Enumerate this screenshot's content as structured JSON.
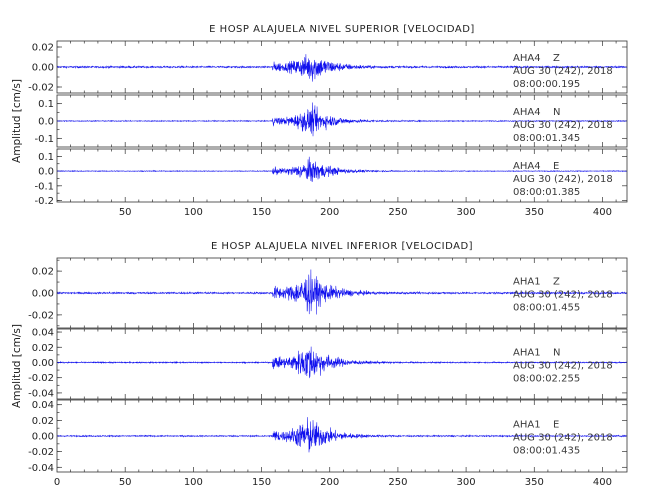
{
  "colors": {
    "trace": "#1010ee",
    "axis": "#333333",
    "text": "#222222"
  },
  "chart_data": [
    {
      "type": "line",
      "title": "E HOSP ALAJUELA NIVEL SUPERIOR [VELOCIDAD]",
      "ylabel": "Amplitud [cm/s]",
      "xlabel": "",
      "xlim": [
        0,
        418
      ],
      "xticks": [
        50,
        100,
        150,
        200,
        250,
        300,
        350,
        400
      ],
      "grid": false,
      "panels": [
        {
          "station": "AHA4",
          "component": "Z",
          "date": "AUG 30 (242), 2018",
          "time": "08:00:00.195",
          "ylim": [
            -0.026,
            0.026
          ],
          "yticks": [
            {
              "v": 0.02,
              "t": "0.02"
            },
            {
              "v": 0.0,
              "t": "0.00"
            },
            {
              "v": -0.02,
              "t": "-0.02"
            }
          ],
          "noise": 0.0013,
          "peak": 0.024,
          "event_onset": 158,
          "event_peak": 187
        },
        {
          "station": "AHA4",
          "component": "N",
          "date": "AUG 30 (242), 2018",
          "time": "08:00:01.345",
          "ylim": [
            -0.15,
            0.15
          ],
          "yticks": [
            {
              "v": 0.1,
              "t": "0.1"
            },
            {
              "v": 0.0,
              "t": "0.0"
            },
            {
              "v": -0.1,
              "t": "-0.1"
            }
          ],
          "noise": 0.004,
          "peak": 0.13,
          "event_onset": 158,
          "event_peak": 187
        },
        {
          "station": "AHA4",
          "component": "E",
          "date": "AUG 30 (242), 2018",
          "time": "08:00:01.385",
          "ylim": [
            -0.21,
            0.15
          ],
          "yticks": [
            {
              "v": 0.1,
              "t": "0.1"
            },
            {
              "v": 0.0,
              "t": "0.0"
            },
            {
              "v": -0.1,
              "t": "-0.1"
            },
            {
              "v": -0.2,
              "t": "-0.2"
            }
          ],
          "noise": 0.004,
          "peak": 0.13,
          "event_onset": 158,
          "event_peak": 187
        }
      ]
    },
    {
      "type": "line",
      "title": "E HOSP ALAJUELA NIVEL INFERIOR [VELOCIDAD]",
      "ylabel": "Amplitud [cm/s]",
      "xlabel": "",
      "xlim": [
        0,
        418
      ],
      "xticks": [
        0,
        50,
        100,
        150,
        200,
        250,
        300,
        350,
        400
      ],
      "grid": false,
      "panels": [
        {
          "station": "AHA1",
          "component": "Z",
          "date": "AUG 30 (242), 2018",
          "time": "08:00:01.455",
          "ylim": [
            -0.032,
            0.032
          ],
          "yticks": [
            {
              "v": 0.02,
              "t": "0.02"
            },
            {
              "v": 0.0,
              "t": "0.00"
            },
            {
              "v": -0.02,
              "t": "-0.02"
            }
          ],
          "noise": 0.0012,
          "peak": 0.03,
          "event_onset": 158,
          "event_peak": 185
        },
        {
          "station": "AHA1",
          "component": "N",
          "date": "AUG 30 (242), 2018",
          "time": "08:00:02.255",
          "ylim": [
            -0.048,
            0.044
          ],
          "yticks": [
            {
              "v": 0.04,
              "t": "0.04"
            },
            {
              "v": 0.02,
              "t": "0.02"
            },
            {
              "v": 0.0,
              "t": "0.00"
            },
            {
              "v": -0.02,
              "t": "-0.02"
            },
            {
              "v": -0.04,
              "t": "-0.04"
            }
          ],
          "noise": 0.0012,
          "peak": 0.04,
          "event_onset": 158,
          "event_peak": 185
        },
        {
          "station": "AHA1",
          "component": "E",
          "date": "AUG 30 (242), 2018",
          "time": "08:00:01.435",
          "ylim": [
            -0.046,
            0.046
          ],
          "yticks": [
            {
              "v": 0.04,
              "t": "0.04"
            },
            {
              "v": 0.02,
              "t": "0.02"
            },
            {
              "v": 0.0,
              "t": "0.00"
            },
            {
              "v": -0.02,
              "t": "-0.02"
            },
            {
              "v": -0.04,
              "t": "-0.04"
            }
          ],
          "noise": 0.0012,
          "peak": 0.038,
          "event_onset": 158,
          "event_peak": 185
        }
      ]
    }
  ]
}
